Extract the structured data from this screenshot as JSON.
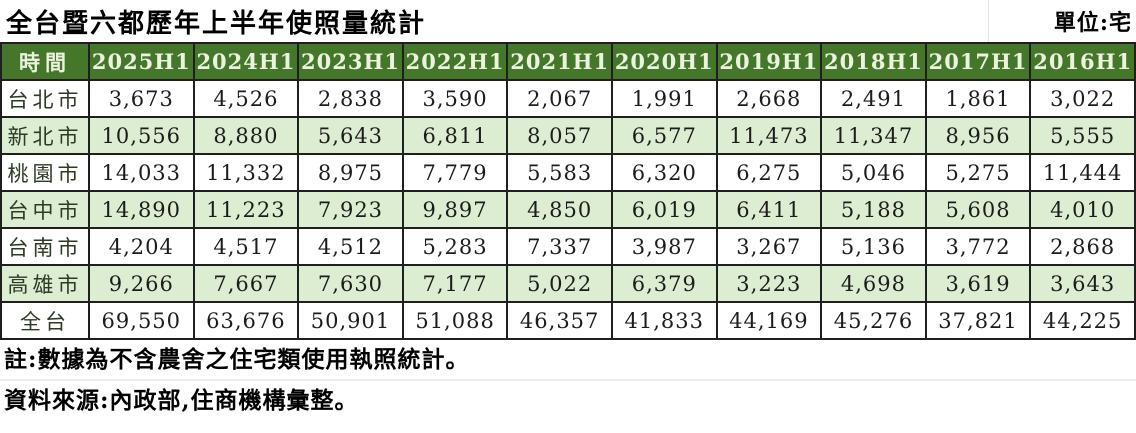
{
  "title": "全台暨六都歷年上半年使照量統計",
  "unit_label": "單位:宅",
  "table": {
    "header_label": "時間",
    "columns": [
      "2025H1",
      "2024H1",
      "2023H1",
      "2022H1",
      "2021H1",
      "2020H1",
      "2019H1",
      "2018H1",
      "2017H1",
      "2016H1"
    ],
    "rows": [
      {
        "label": "台北市",
        "values": [
          "3,673",
          "4,526",
          "2,838",
          "3,590",
          "2,067",
          "1,991",
          "2,668",
          "2,491",
          "1,861",
          "3,022"
        ]
      },
      {
        "label": "新北市",
        "values": [
          "10,556",
          "8,880",
          "5,643",
          "6,811",
          "8,057",
          "6,577",
          "11,473",
          "11,347",
          "8,956",
          "5,555"
        ]
      },
      {
        "label": "桃園市",
        "values": [
          "14,033",
          "11,332",
          "8,975",
          "7,779",
          "5,583",
          "6,320",
          "6,275",
          "5,046",
          "5,275",
          "11,444"
        ]
      },
      {
        "label": "台中市",
        "values": [
          "14,890",
          "11,223",
          "7,923",
          "9,897",
          "4,850",
          "6,019",
          "6,411",
          "5,188",
          "5,608",
          "4,010"
        ]
      },
      {
        "label": "台南市",
        "values": [
          "4,204",
          "4,517",
          "4,512",
          "5,283",
          "7,337",
          "3,987",
          "3,267",
          "5,136",
          "3,772",
          "2,868"
        ]
      },
      {
        "label": "高雄市",
        "values": [
          "9,266",
          "7,667",
          "7,630",
          "7,177",
          "5,022",
          "6,379",
          "3,223",
          "4,698",
          "3,619",
          "3,643"
        ]
      },
      {
        "label": "全台",
        "values": [
          "69,550",
          "63,676",
          "50,901",
          "51,088",
          "46,357",
          "41,833",
          "44,169",
          "45,276",
          "37,821",
          "44,225"
        ]
      }
    ]
  },
  "notes": {
    "line1": "註:數據為不含農舍之住宅類使用執照統計。",
    "line2": "資料來源:內政部,住商機構彙整。"
  },
  "colors": {
    "header_bg": "#45772a",
    "header_text": "#ebf2de",
    "alt_row_bg": "#dcedd2",
    "border": "#1f1f1f",
    "text": "#1c1c1c"
  },
  "chart_data": {
    "type": "table",
    "title": "全台暨六都歷年上半年使照量統計",
    "unit": "宅",
    "categories": [
      "2025H1",
      "2024H1",
      "2023H1",
      "2022H1",
      "2021H1",
      "2020H1",
      "2019H1",
      "2018H1",
      "2017H1",
      "2016H1"
    ],
    "series": [
      {
        "name": "台北市",
        "values": [
          3673,
          4526,
          2838,
          3590,
          2067,
          1991,
          2668,
          2491,
          1861,
          3022
        ]
      },
      {
        "name": "新北市",
        "values": [
          10556,
          8880,
          5643,
          6811,
          8057,
          6577,
          11473,
          11347,
          8956,
          5555
        ]
      },
      {
        "name": "桃園市",
        "values": [
          14033,
          11332,
          8975,
          7779,
          5583,
          6320,
          6275,
          5046,
          5275,
          11444
        ]
      },
      {
        "name": "台中市",
        "values": [
          14890,
          11223,
          7923,
          9897,
          4850,
          6019,
          6411,
          5188,
          5608,
          4010
        ]
      },
      {
        "name": "台南市",
        "values": [
          4204,
          4517,
          4512,
          5283,
          7337,
          3987,
          3267,
          5136,
          3772,
          2868
        ]
      },
      {
        "name": "全台",
        "values": [
          69550,
          63676,
          50901,
          51088,
          46357,
          41833,
          44169,
          45276,
          37821,
          44225
        ]
      },
      {
        "name": "高雄市",
        "values": [
          9266,
          7667,
          7630,
          7177,
          5022,
          6379,
          3223,
          4698,
          3619,
          3643
        ]
      }
    ],
    "notes": [
      "註:數據為不含農舍之住宅類使用執照統計。",
      "資料來源:內政部,住商機構彙整。"
    ]
  }
}
